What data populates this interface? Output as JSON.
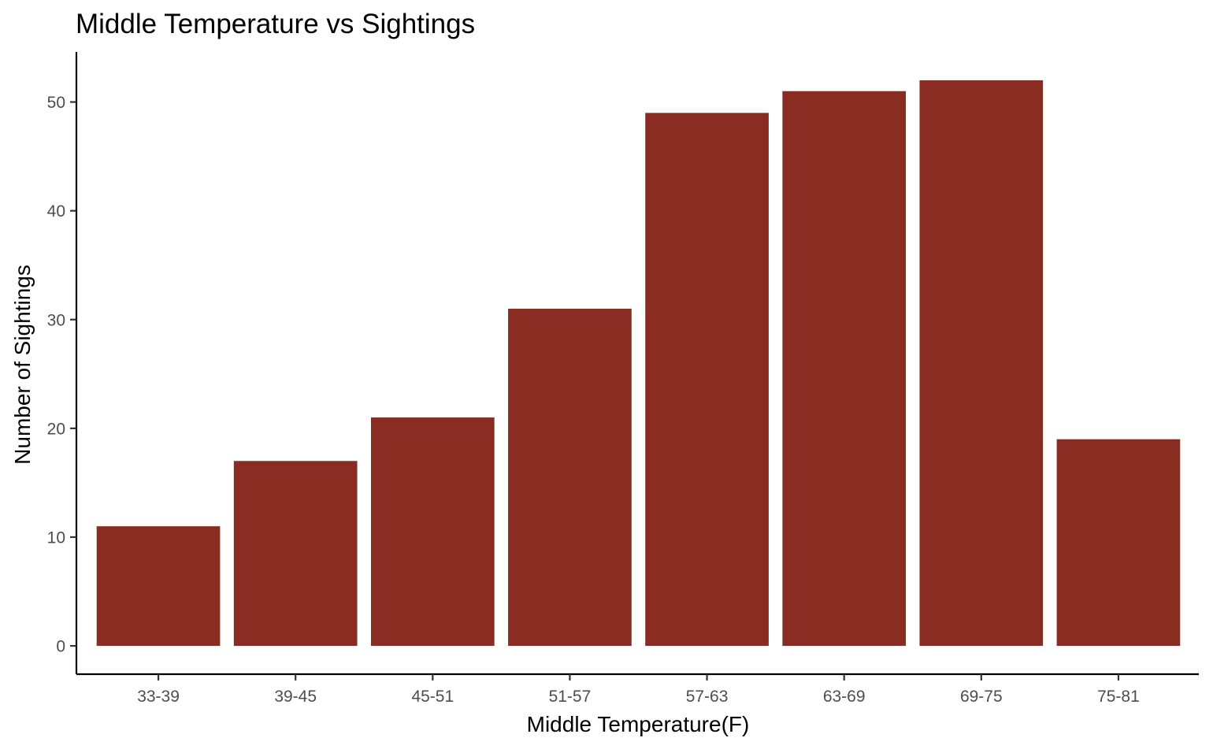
{
  "chart_data": {
    "type": "bar",
    "title": "Middle Temperature vs Sightings",
    "xlabel": "Middle Temperature(F)",
    "ylabel": "Number of Sightings",
    "categories": [
      "33-39",
      "39-45",
      "45-51",
      "51-57",
      "57-63",
      "63-69",
      "69-75",
      "75-81"
    ],
    "values": [
      11,
      17,
      21,
      31,
      49,
      51,
      52,
      19
    ],
    "yticks": [
      0,
      10,
      20,
      30,
      40,
      50
    ],
    "ylim": [
      -2.6,
      54.6
    ],
    "grid": false,
    "legend": "none",
    "bar_color": "#8B2C23"
  }
}
